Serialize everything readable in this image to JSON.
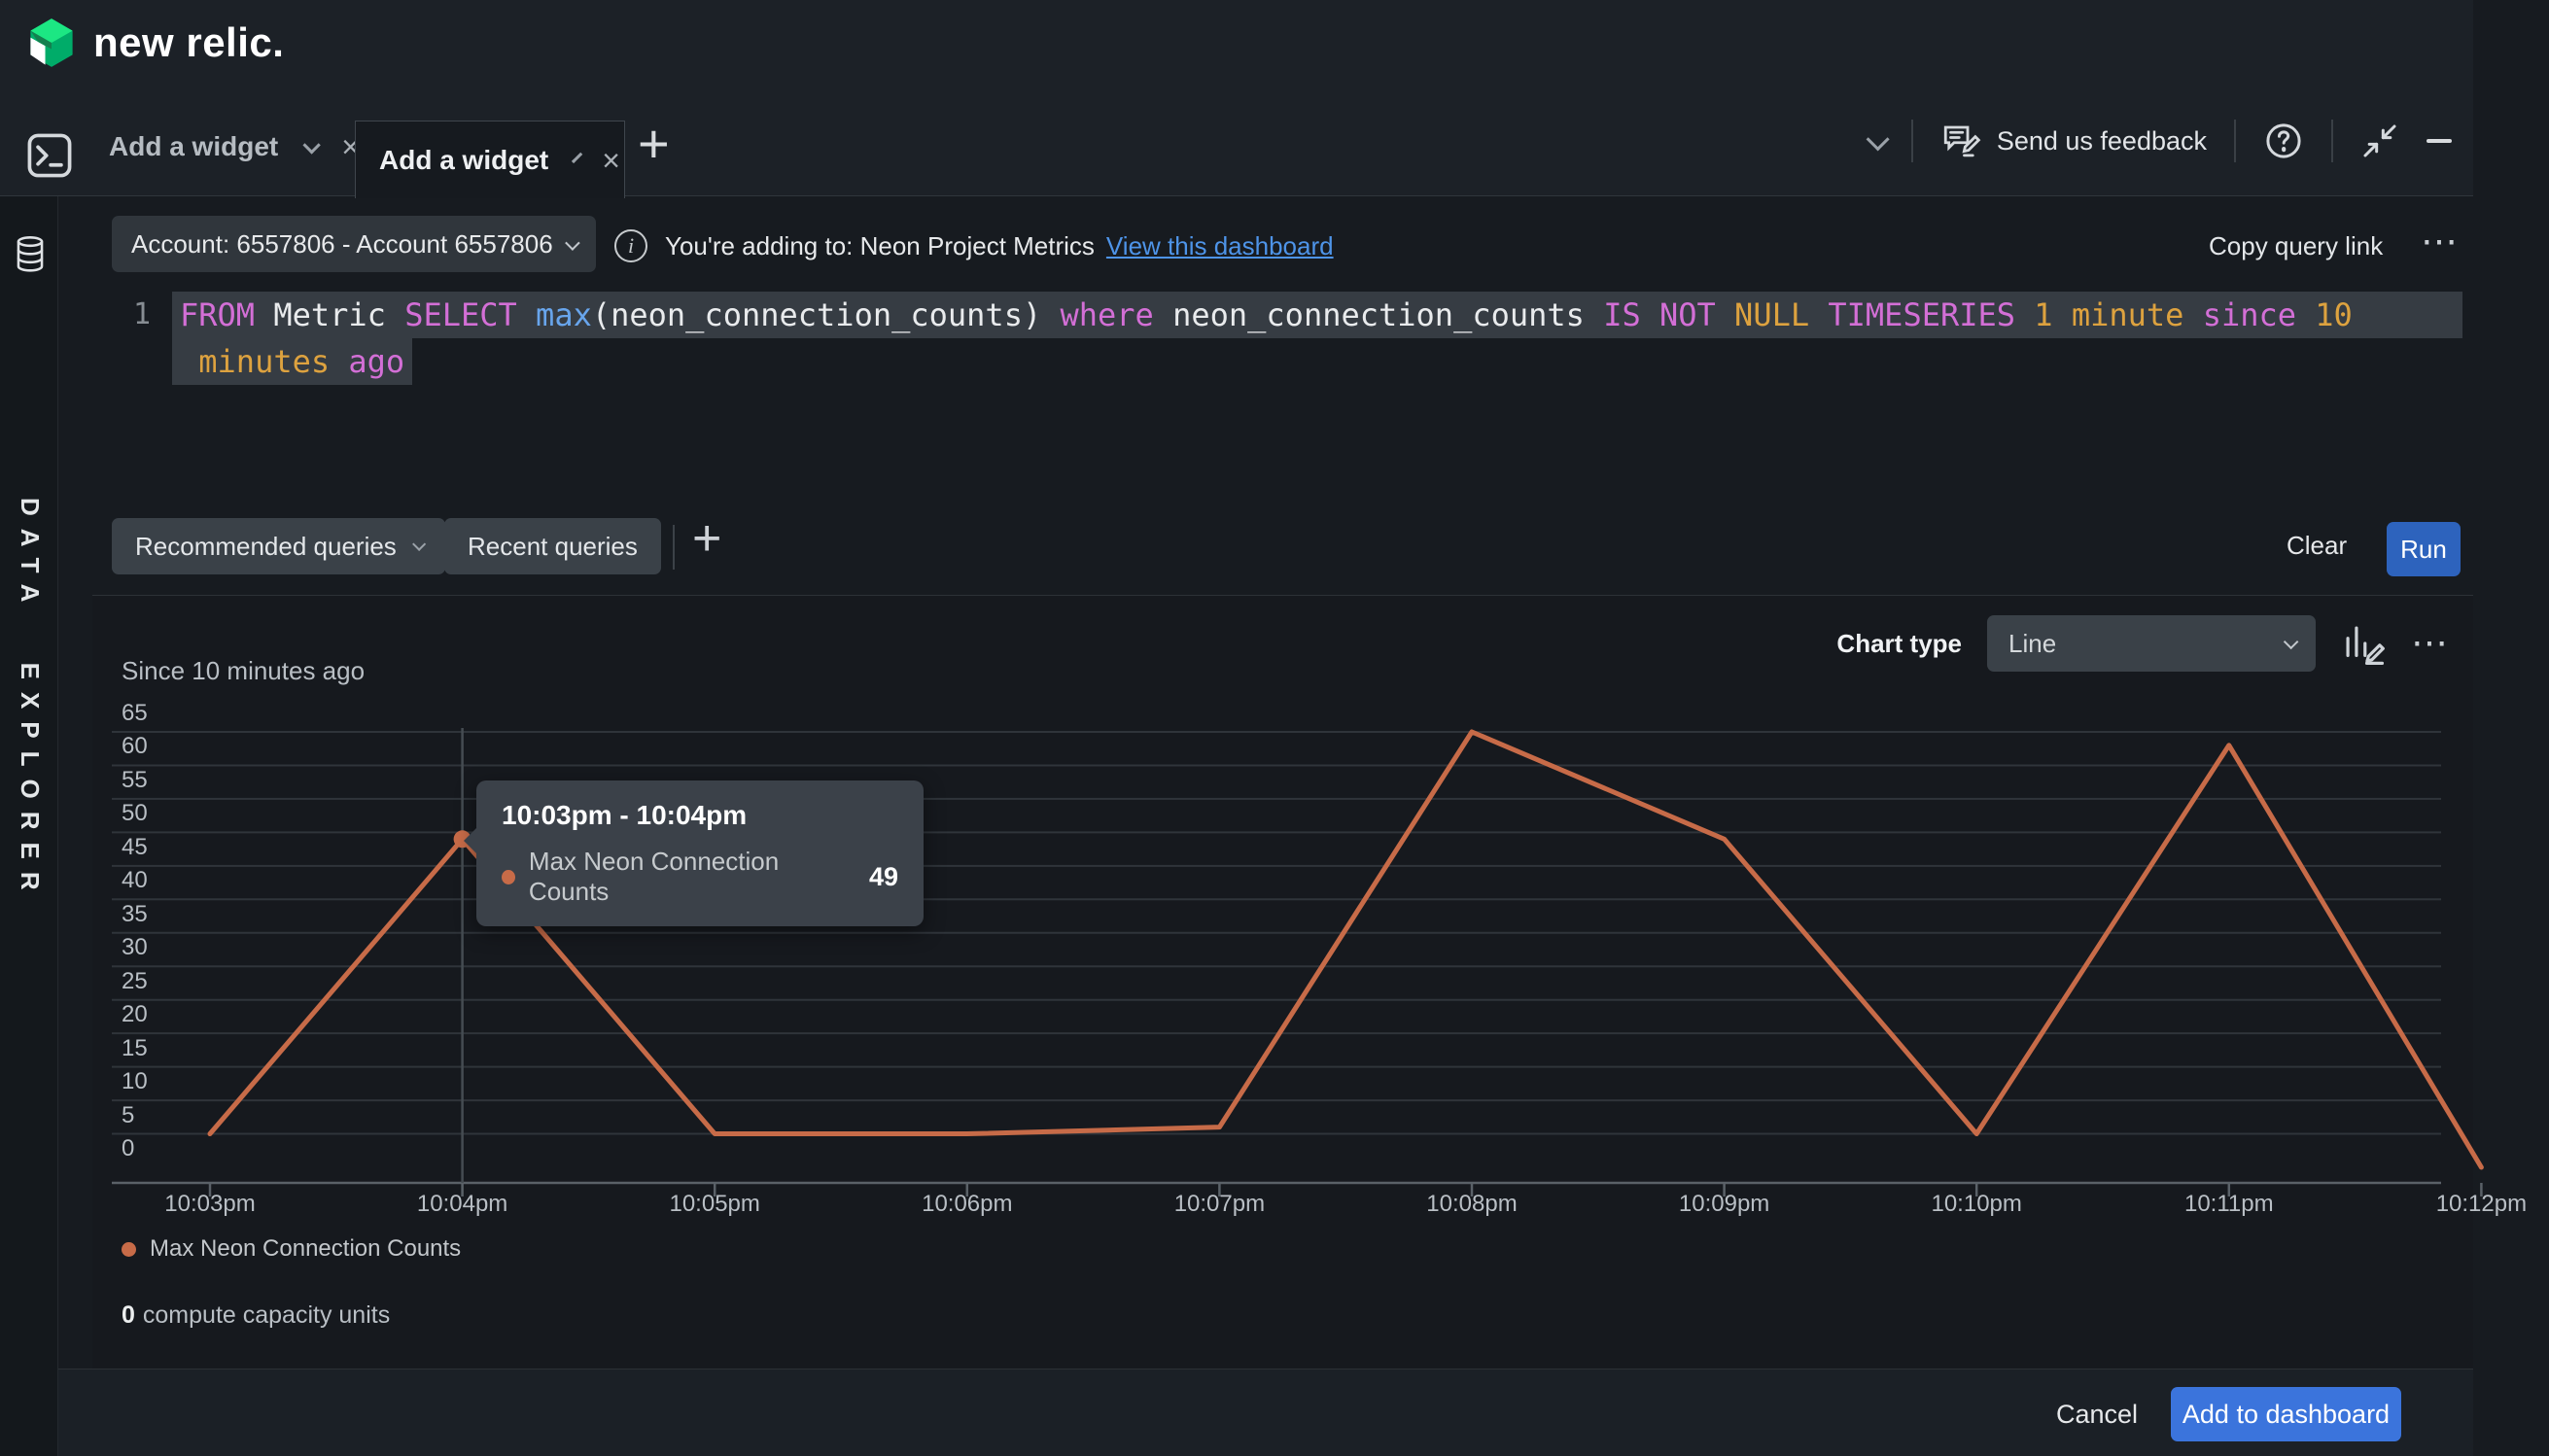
{
  "brand": {
    "logo_text": "new relic."
  },
  "tabbar": {
    "tabs": [
      {
        "label": "Add a widget"
      },
      {
        "label": "Add a widget"
      }
    ],
    "feedback_label": "Send us feedback"
  },
  "query_header": {
    "account_selector": "Account: 6557806 - Account 6557806",
    "info_glyph": "i",
    "adding_to_text": "You're adding to: Neon Project Metrics",
    "view_dashboard_link": "View this dashboard",
    "copy_query_link": "Copy query link"
  },
  "editor": {
    "lines": [
      {
        "number": "1",
        "fill": true,
        "tokens": [
          [
            "FROM",
            "kw"
          ],
          [
            " Metric ",
            "pl"
          ],
          [
            "SELECT",
            "kw"
          ],
          [
            " ",
            "pl"
          ],
          [
            "max",
            "fn"
          ],
          [
            "(neon_connection_counts)",
            "pl"
          ],
          [
            " ",
            "pl"
          ],
          [
            "where",
            "kw"
          ],
          [
            " neon_connection_counts ",
            "pl"
          ],
          [
            "IS NOT",
            "kw"
          ],
          [
            " ",
            "pl"
          ],
          [
            "NULL",
            "num"
          ],
          [
            " ",
            "pl"
          ],
          [
            "TIMESERIES",
            "kw"
          ],
          [
            " ",
            "pl"
          ],
          [
            "1 minute",
            "num"
          ],
          [
            " ",
            "pl"
          ],
          [
            "since",
            "kw"
          ],
          [
            " ",
            "pl"
          ],
          [
            "10",
            "num"
          ]
        ]
      },
      {
        "number": "",
        "fill": false,
        "tokens": [
          [
            " minutes ",
            "num"
          ],
          [
            "ago",
            "kw"
          ]
        ]
      }
    ]
  },
  "query_toolbar": {
    "recommended_label": "Recommended queries",
    "recent_label": "Recent queries",
    "clear_label": "Clear",
    "run_label": "Run"
  },
  "chart_panel": {
    "chart_type_label": "Chart type",
    "chart_type_value": "Line",
    "since_label": "Since 10 minutes ago",
    "legend_label": "Max Neon Connection Counts",
    "footer_value": "0",
    "footer_text": "compute capacity units"
  },
  "tooltip": {
    "title": "10:03pm - 10:04pm",
    "series": "Max Neon Connection Counts",
    "value": "49"
  },
  "footer_bar": {
    "cancel_label": "Cancel",
    "add_label": "Add to dashboard"
  },
  "sidebar": {
    "label": "DATA EXPLORER"
  },
  "colors": {
    "accent_blue": "#3b74dc",
    "run_blue": "#2d63bd",
    "link_blue": "#4e94e8",
    "series_orange": "#c76b48",
    "grid": "#2f343a",
    "axis": "#5a6168",
    "crosshair": "#454c52",
    "syntax_keyword": "#d36fd6",
    "syntax_function": "#68a5ec",
    "syntax_literal": "#dda23f"
  },
  "chart_data": {
    "type": "line",
    "title": "Since 10 minutes ago",
    "x": [
      "10:03pm",
      "10:04pm",
      "10:05pm",
      "10:06pm",
      "10:07pm",
      "10:08pm",
      "10:09pm",
      "10:10pm",
      "10:11pm",
      "10:12pm"
    ],
    "series": [
      {
        "name": "Max Neon Connection Counts",
        "values": [
          5,
          49,
          5,
          5,
          6,
          65,
          49,
          5,
          63,
          0
        ]
      }
    ],
    "ylim": [
      0,
      65
    ],
    "yticks": [
      0,
      5,
      10,
      15,
      20,
      25,
      30,
      35,
      40,
      45,
      50,
      55,
      60,
      65
    ],
    "grid": true,
    "legend_position": "bottom-left",
    "line_color": "#c76b48",
    "highlight": {
      "x_index": 1,
      "value": 49,
      "bucket": "10:03pm - 10:04pm"
    }
  }
}
